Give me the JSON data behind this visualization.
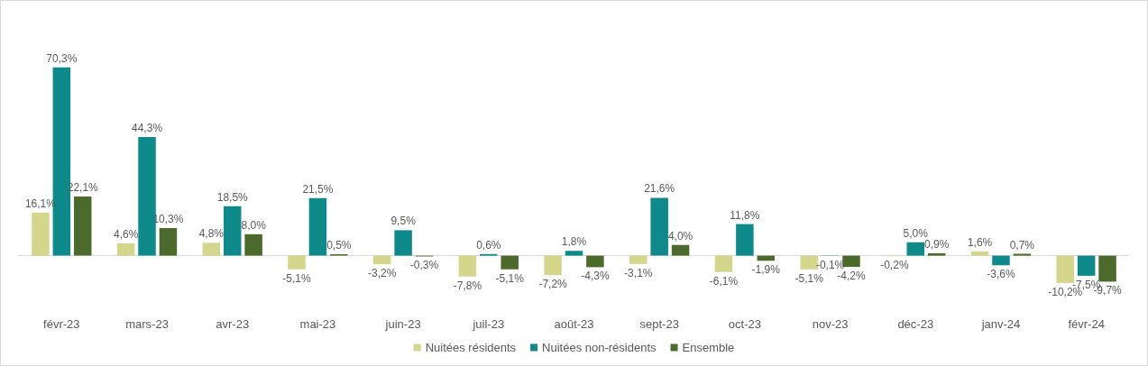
{
  "chart_data": {
    "type": "bar",
    "categories": [
      "févr-23",
      "mars-23",
      "avr-23",
      "mai-23",
      "juin-23",
      "juil-23",
      "août-23",
      "sept-23",
      "oct-23",
      "nov-23",
      "déc-23",
      "janv-24",
      "févr-24"
    ],
    "series": [
      {
        "name": "Nuitées résidents",
        "color": "#d4d68c",
        "values": [
          16.1,
          4.6,
          4.8,
          -5.1,
          -3.2,
          -7.8,
          -7.2,
          -3.1,
          -6.1,
          -5.1,
          -0.2,
          1.6,
          -10.2
        ],
        "value_labels": [
          "16,1%",
          "4,6%",
          "4,8%",
          "-5,1%",
          "-3,2%",
          "-7,8%",
          "-7,2%",
          "-3,1%",
          "-6,1%",
          "-5,1%",
          "-0,2%",
          "1,6%",
          "-10,2%"
        ]
      },
      {
        "name": "Nuitées non-résidents",
        "color": "#0e8a8a",
        "values": [
          70.3,
          44.3,
          18.5,
          21.5,
          9.5,
          0.6,
          1.8,
          21.6,
          11.8,
          -0.1,
          5.0,
          -3.6,
          -7.5
        ],
        "value_labels": [
          "70,3%",
          "44,3%",
          "18,5%",
          "21,5%",
          "9,5%",
          "0,6%",
          "1,8%",
          "21,6%",
          "11,8%",
          "-0,1%",
          "5,0%",
          "-3,6%",
          "-7,5%"
        ]
      },
      {
        "name": "Ensemble",
        "color": "#4b6a2b",
        "values": [
          22.1,
          10.3,
          8.0,
          0.5,
          -0.3,
          -5.1,
          -4.3,
          4.0,
          -1.9,
          -4.2,
          0.9,
          0.7,
          -9.7
        ],
        "value_labels": [
          "22,1%",
          "10,3%",
          "8,0%",
          "0,5%",
          "-0,3%",
          "-5,1%",
          "-4,3%",
          "4,0%",
          "-1,9%",
          "-4,2%",
          "0,9%",
          "0,7%",
          "-9,7%"
        ]
      }
    ],
    "grid": false,
    "legend": "bottom"
  }
}
